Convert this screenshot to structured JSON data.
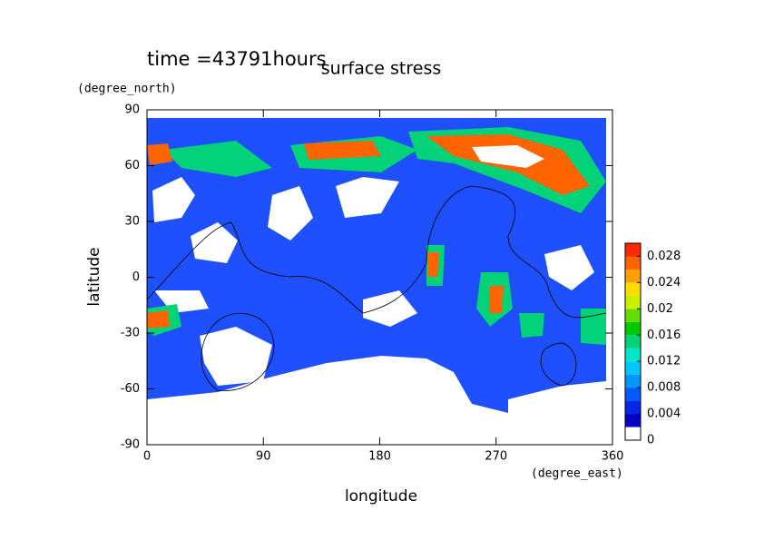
{
  "chart_data": {
    "type": "contour",
    "title": "surface stress",
    "subtitle": "time =43791hours",
    "x_label": "longitude",
    "x_unit": "(degree_east)",
    "y_label": "latitude",
    "y_unit": "(degree_north)",
    "xlim": [
      0,
      360
    ],
    "xticks": [
      0,
      90,
      180,
      270,
      360
    ],
    "ylim": [
      -90,
      90
    ],
    "yticks": [
      -90,
      -60,
      -30,
      0,
      30,
      60,
      90
    ],
    "colorbar": {
      "lim": [
        0,
        0.03
      ],
      "ticks": [
        0,
        0.004,
        0.008,
        0.012,
        0.016,
        0.02,
        0.024,
        0.028
      ],
      "colors": [
        "#ffffff",
        "#0000c8",
        "#0028e6",
        "#005aff",
        "#0096ff",
        "#00c8ff",
        "#00e6c8",
        "#00d278",
        "#00c800",
        "#64dc00",
        "#c8f000",
        "#ffdc00",
        "#ffa000",
        "#ff6400",
        "#ff2800"
      ]
    }
  }
}
